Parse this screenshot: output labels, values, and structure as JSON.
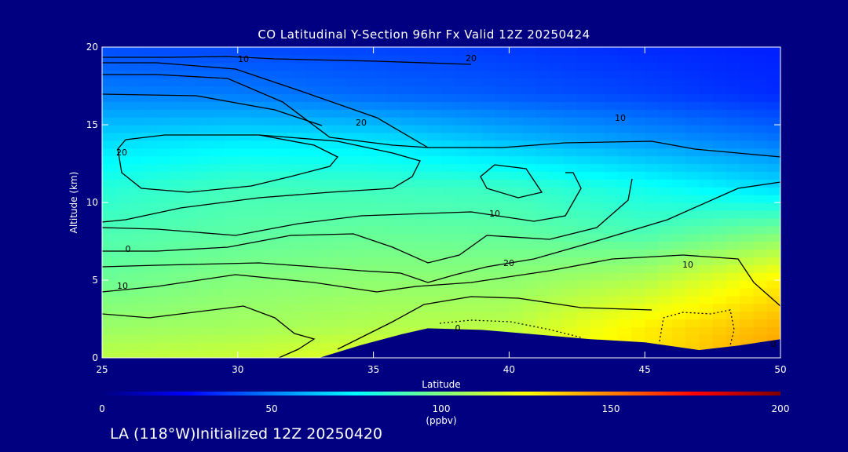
{
  "chart_data": {
    "type": "heatmap",
    "title": "CO Latitudinal Y-Section 96hr  Fx Valid 12Z 20250424",
    "xlabel": "Latitude",
    "ylabel": "Altitude (km)",
    "xlim": [
      25,
      50
    ],
    "ylim": [
      0,
      20
    ],
    "x_ticks": [
      "25",
      "30",
      "35",
      "40",
      "45",
      "50"
    ],
    "y_ticks": [
      "0",
      "5",
      "10",
      "15",
      "20"
    ],
    "colorbar": {
      "label": "(ppbv)",
      "range": [
        0,
        200
      ],
      "ticks": [
        "0",
        "50",
        "100",
        "150",
        "200"
      ],
      "colors": [
        "#000080",
        "#0000ff",
        "#0080ff",
        "#00ffff",
        "#80ff80",
        "#ffff00",
        "#ff8000",
        "#ff0000",
        "#800000"
      ]
    },
    "contour_levels": [
      0,
      10,
      20
    ],
    "contour_labels": [
      "10",
      "20",
      "10",
      "20",
      "10",
      "0",
      "20",
      "10",
      "0",
      "20",
      "10",
      "0"
    ],
    "bands": [
      {
        "altitude": 20,
        "values": [
          40,
          39,
          38,
          36,
          33,
          31
        ]
      },
      {
        "altitude": 17,
        "values": [
          50,
          49,
          45,
          42,
          38,
          33
        ]
      },
      {
        "altitude": 14,
        "values": [
          68,
          71,
          70,
          62,
          55,
          48
        ]
      },
      {
        "altitude": 11,
        "values": [
          82,
          88,
          87,
          86,
          78,
          68
        ]
      },
      {
        "altitude": 8,
        "values": [
          90,
          93,
          95,
          94,
          90,
          100
        ]
      },
      {
        "altitude": 5,
        "values": [
          96,
          101,
          103,
          103,
          110,
          128
        ]
      },
      {
        "altitude": 2,
        "values": [
          105,
          107,
          110,
          112,
          128,
          140
        ]
      },
      {
        "altitude": 0,
        "values": [
          112,
          115,
          120,
          118,
          130,
          146
        ]
      }
    ],
    "terrain_km": [
      [
        25,
        0
      ],
      [
        33,
        0
      ],
      [
        34.5,
        0.8
      ],
      [
        36,
        1.5
      ],
      [
        37,
        1.9
      ],
      [
        39,
        1.8
      ],
      [
        41,
        1.5
      ],
      [
        43,
        1.2
      ],
      [
        45,
        1.0
      ],
      [
        47,
        0.5
      ],
      [
        48.5,
        0.8
      ],
      [
        50,
        1.2
      ]
    ]
  },
  "footer": {
    "station": "LA (118°W)Initialized 12Z 20250420"
  }
}
